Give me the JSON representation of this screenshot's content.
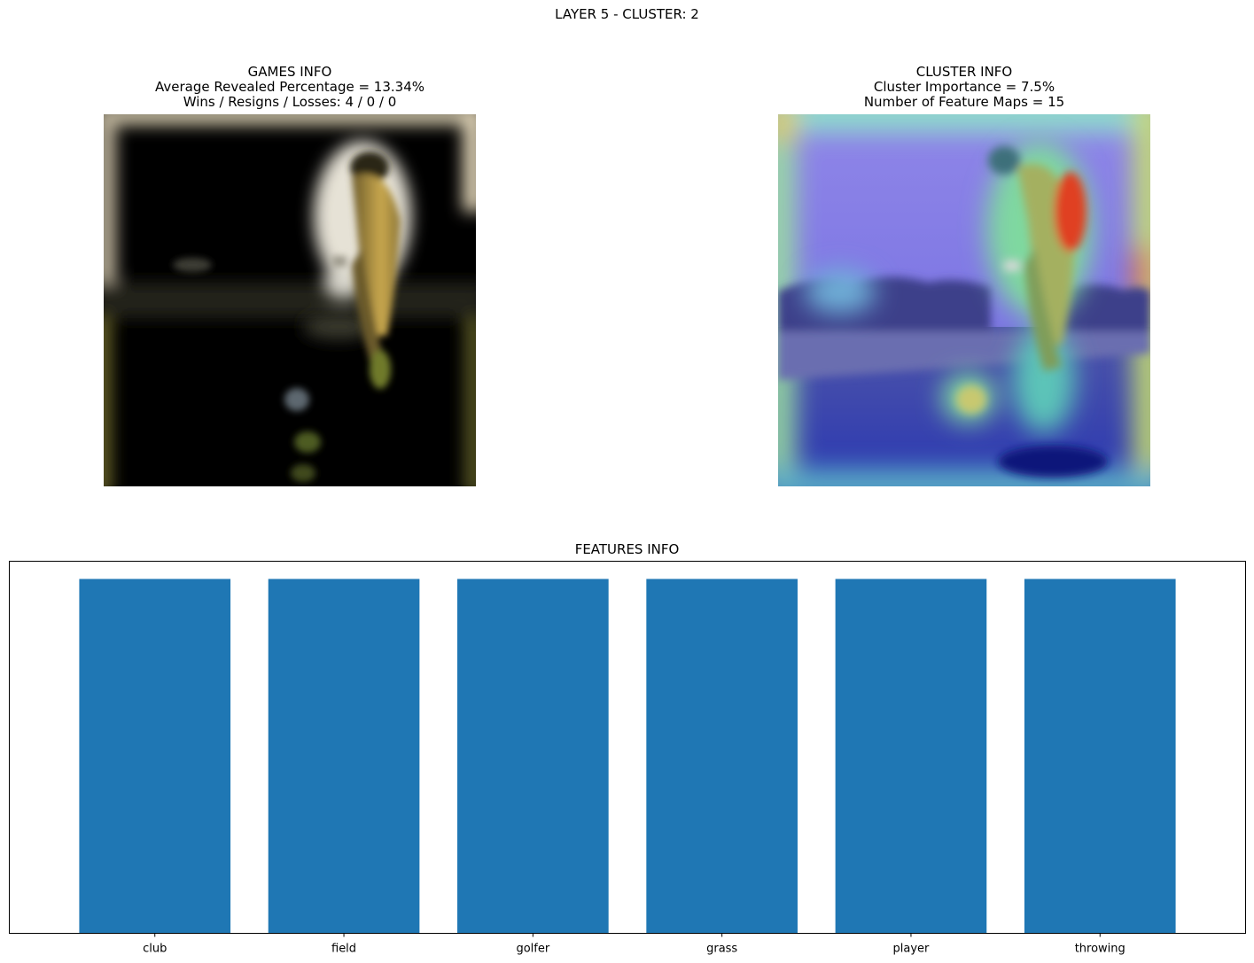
{
  "figure": {
    "suptitle": "LAYER 5 - CLUSTER: 2"
  },
  "games_panel": {
    "title": "GAMES INFO",
    "line1": "Average Revealed Percentage = 13.34%",
    "line2": "Wins / Resigns / Losses: 4 / 0 / 0"
  },
  "cluster_panel": {
    "title": "CLUSTER INFO",
    "line1": "Cluster Importance = 7.5%",
    "line2": "Number of Feature Maps = 15"
  },
  "colors": {
    "bar": "#1f77b4",
    "axes": "#000000"
  },
  "chart_data": {
    "type": "bar",
    "title": "FEATURES INFO",
    "categories": [
      "club",
      "field",
      "golfer",
      "grass",
      "player",
      "throwing"
    ],
    "values": [
      1,
      1,
      1,
      1,
      1,
      1
    ],
    "ylim": [
      0,
      1.05
    ],
    "xlabel": "",
    "ylabel": "",
    "yticks_visible": false,
    "grid": false
  }
}
